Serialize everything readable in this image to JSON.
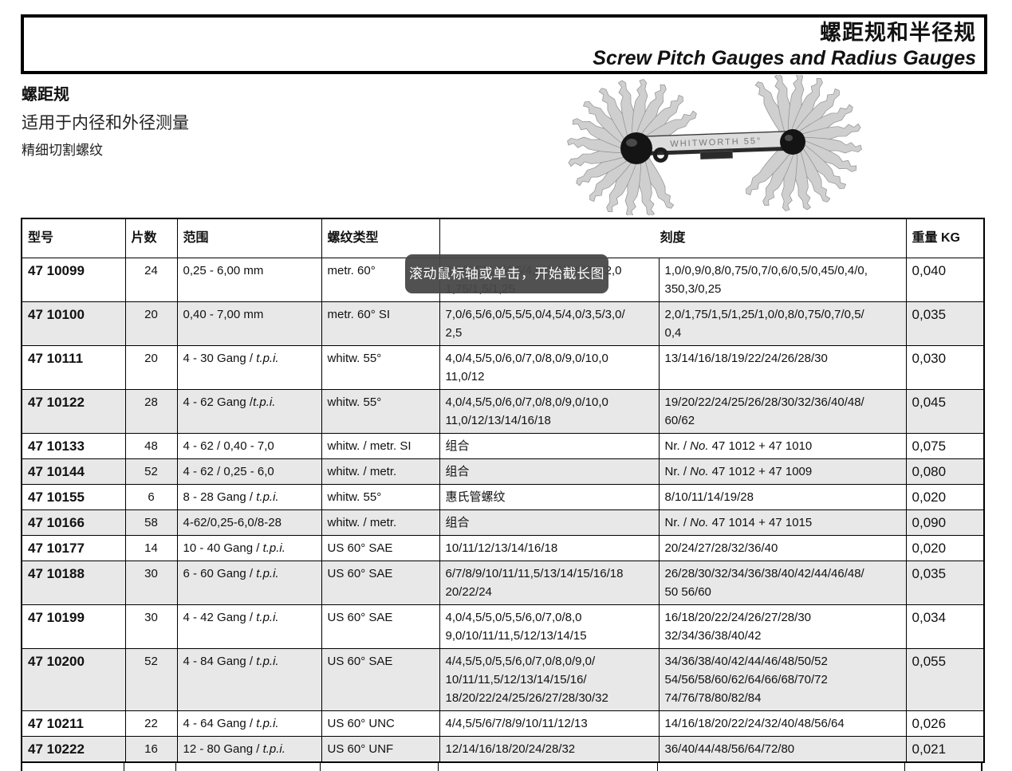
{
  "page": {
    "title_zh": "螺距规和半径规",
    "title_en": "Screw Pitch Gauges and Radius Gauges",
    "section_title": "螺距规",
    "section_sub1": "适用于内径和外径测量",
    "section_sub2": "精细切割螺纹",
    "photo_label": "WHITWORTH 55°"
  },
  "tooltip": {
    "text": "滚动鼠标轴或单击，开始截长图",
    "bg": "#484848",
    "fg": "#ffffff"
  },
  "table": {
    "headers": [
      "型号",
      "片数",
      "范围",
      "螺纹类型",
      "刻度",
      "重量 KG"
    ],
    "stripe_color": "#e8e8e8",
    "rows": [
      {
        "model": "47 10099",
        "pieces": "24",
        "range": [
          [
            {
              "t": "0,25 - 6,00 mm"
            }
          ]
        ],
        "type": "metr. 60°",
        "scale1": [
          [
            {
              "t": "6,0/5,5/5,0/4,5/4,0/3,5/3,0/2,5/2,0"
            }
          ],
          [
            {
              "t": "1,75/1,5/1,25"
            }
          ]
        ],
        "scale2": [
          [
            {
              "t": "1,0/0,9/0,8/0,75/0,7/0,6/0,5/0,45/0,4/0,"
            }
          ],
          [
            {
              "t": "350,3/0,25"
            }
          ]
        ],
        "weight": "0,040"
      },
      {
        "model": "47 10100",
        "pieces": "20",
        "range": [
          [
            {
              "t": "0,40 - 7,00 mm"
            }
          ]
        ],
        "type": "metr. 60° SI",
        "scale1": [
          [
            {
              "t": "7,0/6,5/6,0/5,5/5,0/4,5/4,0/3,5/3,0/"
            }
          ],
          [
            {
              "t": "2,5"
            }
          ]
        ],
        "scale2": [
          [
            {
              "t": "2,0/1,75/1,5/1,25/1,0/0,8/0,75/0,7/0,5/"
            }
          ],
          [
            {
              "t": "0,4"
            }
          ]
        ],
        "weight": "0,035"
      },
      {
        "model": "47 10111",
        "pieces": "20",
        "range": [
          [
            {
              "t": "4 - 30 Gang / "
            },
            {
              "t": "t.p.i.",
              "i": true
            }
          ]
        ],
        "type": "whitw. 55°",
        "scale1": [
          [
            {
              "t": "4,0/4,5/5,0/6,0/7,0/8,0/9,0/10,0"
            }
          ],
          [
            {
              "t": "11,0/12"
            }
          ]
        ],
        "scale2": [
          [
            {
              "t": "13/14/16/18/19/22/24/26/28/30"
            }
          ]
        ],
        "weight": "0,030"
      },
      {
        "model": "47 10122",
        "pieces": "28",
        "range": [
          [
            {
              "t": "4 - 62 Gang /"
            },
            {
              "t": "t.p.i.",
              "i": true
            }
          ]
        ],
        "type": "whitw. 55°",
        "scale1": [
          [
            {
              "t": "4,0/4,5/5,0/6,0/7,0/8,0/9,0/10,0"
            }
          ],
          [
            {
              "t": "11,0/12/13/14/16/18"
            }
          ]
        ],
        "scale2": [
          [
            {
              "t": "19/20/22/24/25/26/28/30/32/36/40/48/"
            }
          ],
          [
            {
              "t": "60/62"
            }
          ]
        ],
        "weight": "0,045"
      },
      {
        "model": "47 10133",
        "pieces": "48",
        "range": [
          [
            {
              "t": "4 - 62 / 0,40 - 7,0"
            }
          ]
        ],
        "type": "whitw. / metr. SI",
        "scale1": [
          [
            {
              "t": "组合"
            }
          ]
        ],
        "scale2": [
          [
            {
              "t": "Nr. / "
            },
            {
              "t": "No.",
              "i": true
            },
            {
              "t": " 47 1012 + 47 1010"
            }
          ]
        ],
        "weight": "0,075"
      },
      {
        "model": "47 10144",
        "pieces": "52",
        "range": [
          [
            {
              "t": "4 - 62 / 0,25 - 6,0"
            }
          ]
        ],
        "type": "whitw. / metr.",
        "scale1": [
          [
            {
              "t": "组合"
            }
          ]
        ],
        "scale2": [
          [
            {
              "t": "Nr. / "
            },
            {
              "t": "No.",
              "i": true
            },
            {
              "t": " 47 1012 + 47 1009"
            }
          ]
        ],
        "weight": "0,080"
      },
      {
        "model": "47 10155",
        "pieces": "6",
        "range": [
          [
            {
              "t": "8 - 28 Gang / "
            },
            {
              "t": "t.p.i.",
              "i": true
            }
          ]
        ],
        "type": "whitw. 55°",
        "scale1": [
          [
            {
              "t": "惠氏管螺纹"
            }
          ]
        ],
        "scale2": [
          [
            {
              "t": "8/10/11/14/19/28"
            }
          ]
        ],
        "weight": "0,020"
      },
      {
        "model": "47 10166",
        "pieces": "58",
        "range": [
          [
            {
              "t": "4-62/0,25-6,0/8-28"
            }
          ]
        ],
        "type": "whitw. / metr.",
        "scale1": [
          [
            {
              "t": "组合"
            }
          ]
        ],
        "scale2": [
          [
            {
              "t": "Nr. / "
            },
            {
              "t": "No.",
              "i": true
            },
            {
              "t": " 47 1014 + 47 1015"
            }
          ]
        ],
        "weight": "0,090"
      },
      {
        "model": "47 10177",
        "pieces": "14",
        "range": [
          [
            {
              "t": "10 - 40 Gang / "
            },
            {
              "t": "t.p.i.",
              "i": true
            }
          ]
        ],
        "type": "US 60° SAE",
        "scale1": [
          [
            {
              "t": "10/11/12/13/14/16/18"
            }
          ]
        ],
        "scale2": [
          [
            {
              "t": "20/24/27/28/32/36/40"
            }
          ]
        ],
        "weight": "0,020"
      },
      {
        "model": "47 10188",
        "pieces": "30",
        "range": [
          [
            {
              "t": "6 - 60 Gang / "
            },
            {
              "t": "t.p.i.",
              "i": true
            }
          ]
        ],
        "type": "US 60° SAE",
        "scale1": [
          [
            {
              "t": "6/7/8/9/10/11/11,5/13/14/15/16/18"
            }
          ],
          [
            {
              "t": "20/22/24"
            }
          ]
        ],
        "scale2": [
          [
            {
              "t": "26/28/30/32/34/36/38/40/42/44/46/48/"
            }
          ],
          [
            {
              "t": "50 56/60"
            }
          ]
        ],
        "weight": "0,035"
      },
      {
        "model": "47 10199",
        "pieces": "30",
        "range": [
          [
            {
              "t": "4 - 42 Gang / "
            },
            {
              "t": "t.p.i.",
              "i": true
            }
          ]
        ],
        "type": "US 60° SAE",
        "scale1": [
          [
            {
              "t": "4,0/4,5/5,0/5,5/6,0/7,0/8,0"
            }
          ],
          [
            {
              "t": "9,0/10/11/11,5/12/13/14/15"
            }
          ]
        ],
        "scale2": [
          [
            {
              "t": "16/18/20/22/24/26/27/28/30"
            }
          ],
          [
            {
              "t": "32/34/36/38/40/42"
            }
          ]
        ],
        "weight": "0,034"
      },
      {
        "model": "47 10200",
        "pieces": "52",
        "range": [
          [
            {
              "t": "4 - 84 Gang / "
            },
            {
              "t": "t.p.i.",
              "i": true
            }
          ]
        ],
        "type": "US 60° SAE",
        "scale1": [
          [
            {
              "t": "4/4,5/5,0/5,5/6,0/7,0/8,0/9,0/"
            }
          ],
          [
            {
              "t": "10/11/11,5/12/13/14/15/16/"
            }
          ],
          [
            {
              "t": "18/20/22/24/25/26/27/28/30/32"
            }
          ]
        ],
        "scale2": [
          [
            {
              "t": "34/36/38/40/42/44/46/48/50/52"
            }
          ],
          [
            {
              "t": "54/56/58/60/62/64/66/68/70/72"
            }
          ],
          [
            {
              "t": "74/76/78/80/82/84"
            }
          ]
        ],
        "weight": "0,055"
      },
      {
        "model": "47 10211",
        "pieces": "22",
        "range": [
          [
            {
              "t": "4 - 64 Gang / "
            },
            {
              "t": "t.p.i.",
              "i": true
            }
          ]
        ],
        "type": "US 60° UNC",
        "scale1": [
          [
            {
              "t": "4/4,5/5/6/7/8/9/10/11/12/13"
            }
          ]
        ],
        "scale2": [
          [
            {
              "t": "14/16/18/20/22/24/32/40/48/56/64"
            }
          ]
        ],
        "weight": "0,026"
      },
      {
        "model": "47 10222",
        "pieces": "16",
        "range": [
          [
            {
              "t": "12 - 80 Gang / "
            },
            {
              "t": "t.p.i.",
              "i": true
            }
          ]
        ],
        "type": "US 60° UNF",
        "scale1": [
          [
            {
              "t": "12/14/16/18/20/24/28/32"
            }
          ]
        ],
        "scale2": [
          [
            {
              "t": "36/40/44/48/56/64/72/80"
            }
          ]
        ],
        "weight": "0,021"
      }
    ]
  }
}
